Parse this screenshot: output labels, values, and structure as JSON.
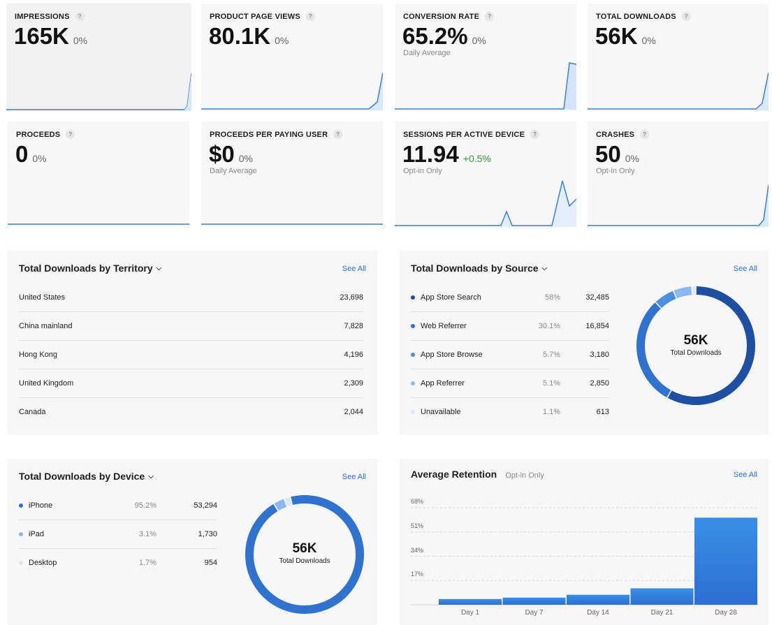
{
  "metrics": [
    {
      "title": "IMPRESSIONS",
      "value": "165K",
      "change": "0%",
      "sub": ""
    },
    {
      "title": "PRODUCT PAGE VIEWS",
      "value": "80.1K",
      "change": "0%",
      "sub": ""
    },
    {
      "title": "CONVERSION RATE",
      "value": "65.2%",
      "change": "0%",
      "sub": "Daily Average"
    },
    {
      "title": "TOTAL DOWNLOADS",
      "value": "56K",
      "change": "0%",
      "sub": ""
    },
    {
      "title": "PROCEEDS",
      "value": "0",
      "change": "0%",
      "sub": ""
    },
    {
      "title": "PROCEEDS PER PAYING USER",
      "value": "$0",
      "change": "0%",
      "sub": "Daily Average"
    },
    {
      "title": "SESSIONS PER ACTIVE DEVICE",
      "value": "11.94",
      "change": "+0.5%",
      "sub": "Opt-in Only"
    },
    {
      "title": "CRASHES",
      "value": "50",
      "change": "0%",
      "sub": "Opt-in Only"
    }
  ],
  "help_glyph": "?",
  "see_all": "See All",
  "territory": {
    "title": "Total Downloads by Territory",
    "rows": [
      {
        "name": "United States",
        "value": "23,698"
      },
      {
        "name": "China mainland",
        "value": "7,828"
      },
      {
        "name": "Hong Kong",
        "value": "4,196"
      },
      {
        "name": "United Kingdom",
        "value": "2,309"
      },
      {
        "name": "Canada",
        "value": "2,044"
      }
    ]
  },
  "source": {
    "title": "Total Downloads by Source",
    "rows": [
      {
        "name": "App Store Search",
        "pct": "58%",
        "value": "32,485",
        "color": "#1e4fa3"
      },
      {
        "name": "Web Referrer",
        "pct": "30.1%",
        "value": "16,854",
        "color": "#2f72d0"
      },
      {
        "name": "App Store Browse",
        "pct": "5.7%",
        "value": "3,180",
        "color": "#4a90e2"
      },
      {
        "name": "App Referrer",
        "pct": "5.1%",
        "value": "2,850",
        "color": "#8bb8f2"
      },
      {
        "name": "Unavailable",
        "pct": "1.1%",
        "value": "613",
        "color": "#dbe8fb"
      }
    ],
    "donut": {
      "value": "56K",
      "label": "Total Downloads",
      "shares": [
        58,
        30.1,
        5.7,
        5.1,
        1.1
      ]
    }
  },
  "device": {
    "title": "Total Downloads by Device",
    "rows": [
      {
        "name": "iPhone",
        "pct": "95.2%",
        "value": "53,294",
        "color": "#2f72d0"
      },
      {
        "name": "iPad",
        "pct": "3.1%",
        "value": "1,730",
        "color": "#8bb8f2"
      },
      {
        "name": "Desktop",
        "pct": "1.7%",
        "value": "954",
        "color": "#dbe8fb"
      }
    ],
    "donut": {
      "value": "56K",
      "label": "Total Downloads",
      "shares": [
        95.2,
        3.1,
        1.7
      ]
    }
  },
  "retention": {
    "title": "Average Retention",
    "subtitle": "Opt-in Only",
    "chart_data": {
      "type": "bar",
      "categories": [
        "Day 1",
        "Day 7",
        "Day 14",
        "Day 21",
        "Day 28"
      ],
      "values": [
        4,
        5,
        7,
        11.5,
        61
      ],
      "yticks": [
        "68%",
        "51%",
        "34%",
        "17%"
      ],
      "ytick_values": [
        68,
        51,
        34,
        17
      ],
      "ylim": [
        0,
        68
      ],
      "grid": true
    }
  },
  "colors": {
    "accent": "#2d72d9",
    "positive": "#2e9b3e",
    "spark_line": "#3d7fd6"
  }
}
